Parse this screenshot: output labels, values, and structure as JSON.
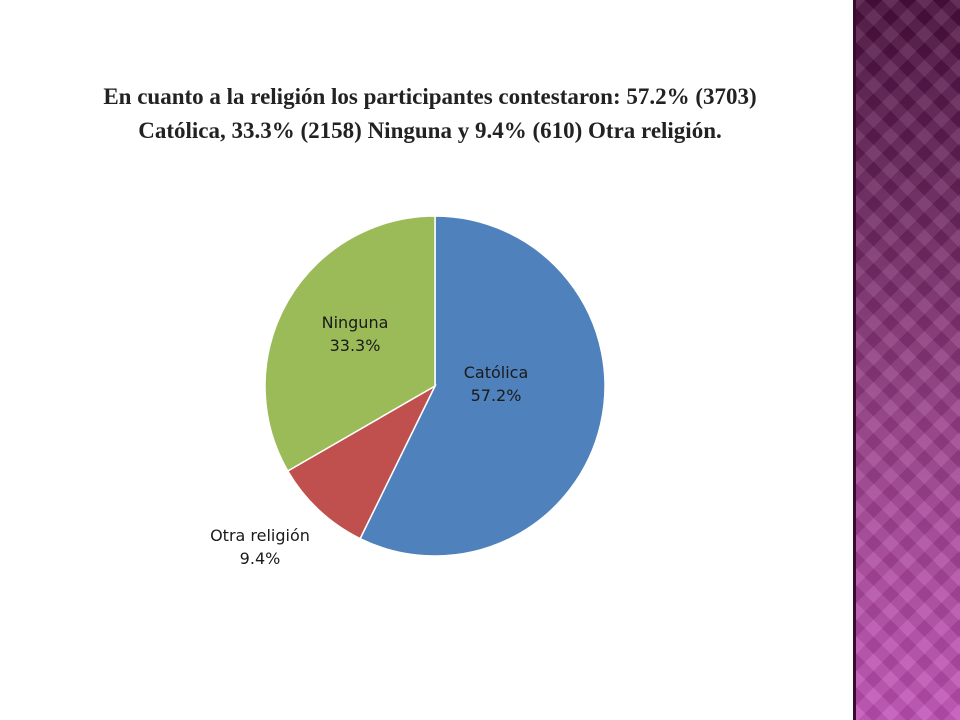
{
  "slide": {
    "title_line1": "En cuanto a la religión los participantes contestaron: 57.2% (3703)",
    "title_line2": "Católica, 33.3% (2158) Ninguna y 9.4% (610) Otra religión."
  },
  "colors": {
    "catolica": "#4f81bd",
    "otra": "#c0504d",
    "ninguna": "#9bbb59",
    "side_band": "#9a3f8a"
  },
  "chart_data": {
    "type": "pie",
    "start_angle_deg": 0,
    "direction": "clockwise",
    "slices": [
      {
        "label": "Católica",
        "value": 57.2,
        "display": "57.2%",
        "color": "#4f81bd"
      },
      {
        "label": "Otra religión",
        "value": 9.4,
        "display": "9.4%",
        "color": "#c0504d"
      },
      {
        "label": "Ninguna",
        "value": 33.3,
        "display": "33.3%",
        "color": "#9bbb59"
      }
    ]
  }
}
